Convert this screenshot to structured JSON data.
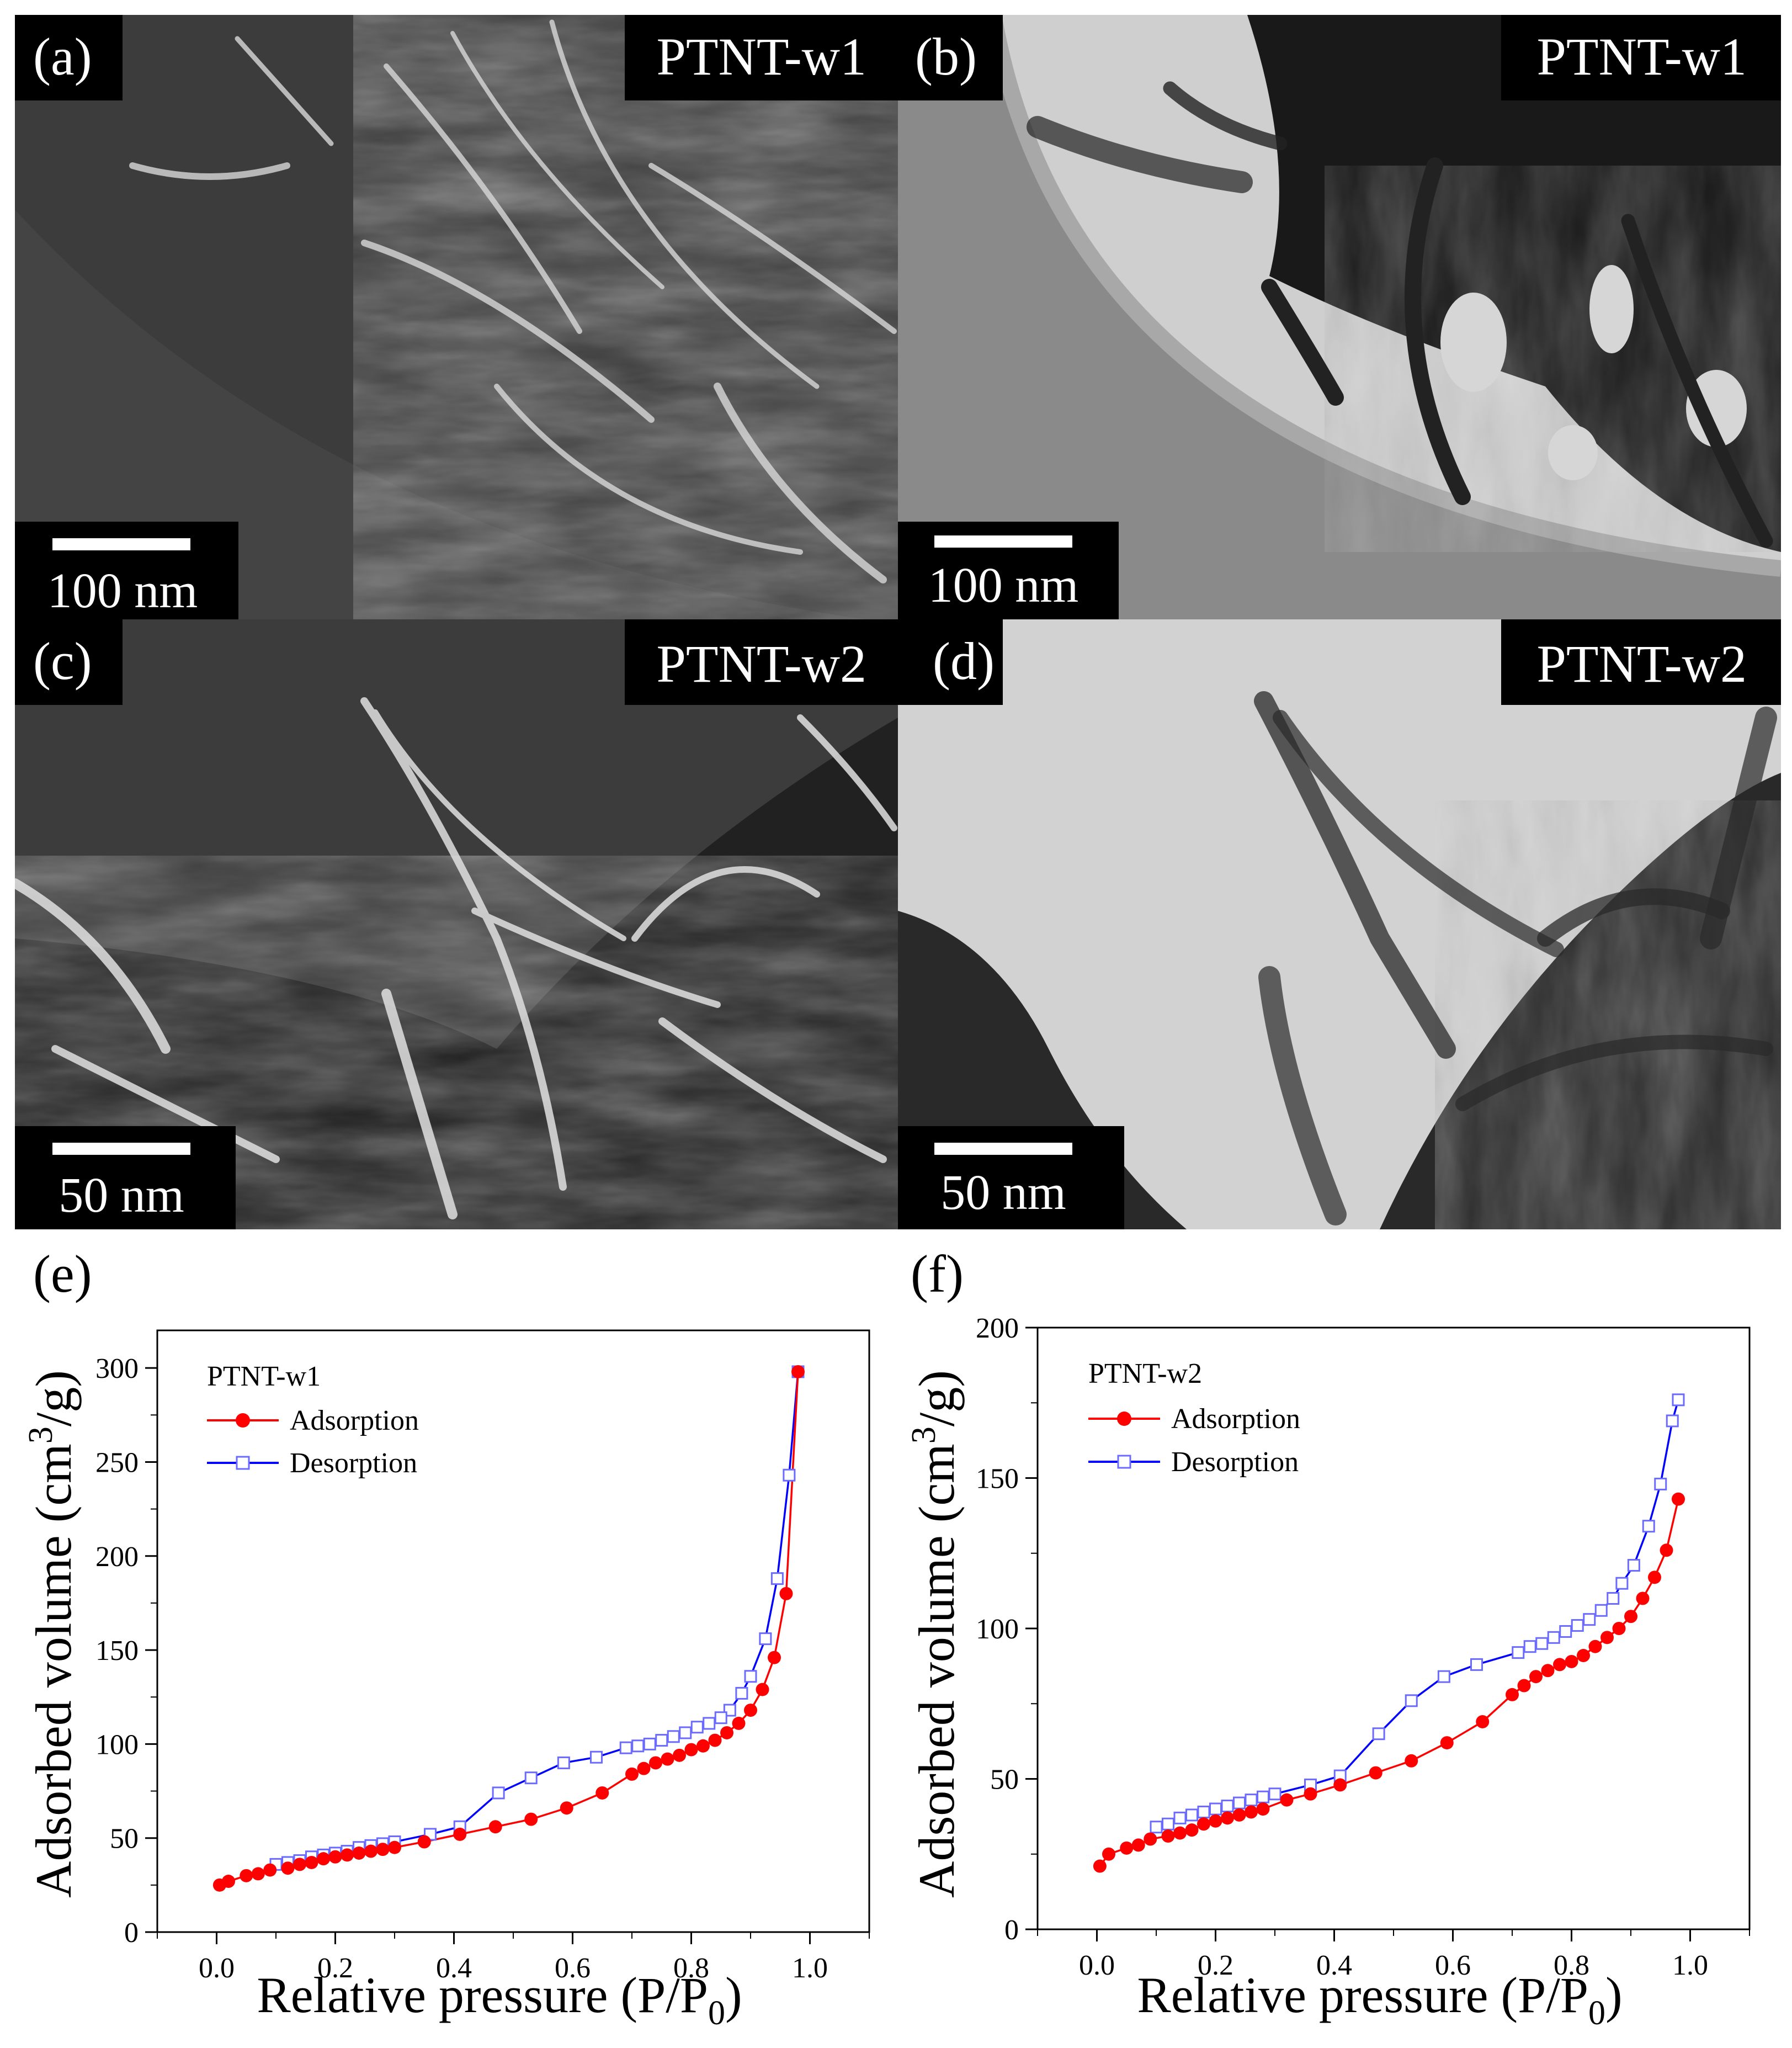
{
  "panels": [
    {
      "id": "a",
      "tag": "(a)",
      "sample": "PTNT-w1",
      "scale_label": "100 nm",
      "imaging": "dark-field"
    },
    {
      "id": "b",
      "tag": "(b)",
      "sample": "PTNT-w1",
      "scale_label": "100 nm",
      "imaging": "bright-field"
    },
    {
      "id": "c",
      "tag": "(c)",
      "sample": "PTNT-w2",
      "scale_label": "50 nm",
      "imaging": "dark-field"
    },
    {
      "id": "d",
      "tag": "(d)",
      "sample": "PTNT-w2",
      "scale_label": "50 nm",
      "imaging": "bright-field"
    }
  ],
  "chart_data": [
    {
      "panel_tag": "(e)",
      "type": "line",
      "legend_title": "PTNT-w1",
      "xlabel": "Relative pressure (P/P0)",
      "ylabel": "Adsorbed volume (cm3/g)",
      "xlim": [
        -0.1,
        1.1
      ],
      "ylim": [
        0,
        320
      ],
      "xticks": [
        "0.0",
        "0.2",
        "0.4",
        "0.6",
        "0.8",
        "1.0"
      ],
      "yticks": [
        "0",
        "50",
        "100",
        "150",
        "200",
        "250",
        "300"
      ],
      "legend_position": "top-left",
      "series": [
        {
          "name": "Adsorption",
          "color": "#ff0000",
          "marker": "filled-circle",
          "x": [
            0.005,
            0.02,
            0.05,
            0.07,
            0.09,
            0.12,
            0.14,
            0.16,
            0.18,
            0.2,
            0.22,
            0.24,
            0.26,
            0.28,
            0.3,
            0.35,
            0.41,
            0.47,
            0.53,
            0.59,
            0.65,
            0.7,
            0.72,
            0.74,
            0.76,
            0.78,
            0.8,
            0.82,
            0.84,
            0.86,
            0.88,
            0.9,
            0.92,
            0.94,
            0.96,
            0.98
          ],
          "y": [
            25,
            27,
            30,
            31,
            33,
            34,
            36,
            37,
            39,
            40,
            41,
            42,
            43,
            44,
            45,
            48,
            52,
            56,
            60,
            66,
            74,
            84,
            87,
            90,
            92,
            94,
            97,
            99,
            102,
            106,
            111,
            118,
            129,
            146,
            180,
            298
          ]
        },
        {
          "name": "Desorption",
          "color": "#0000ff",
          "marker": "open-square",
          "x": [
            0.98,
            0.965,
            0.945,
            0.925,
            0.9,
            0.885,
            0.865,
            0.85,
            0.83,
            0.81,
            0.79,
            0.77,
            0.75,
            0.73,
            0.71,
            0.69,
            0.64,
            0.585,
            0.53,
            0.475,
            0.41,
            0.36,
            0.3,
            0.28,
            0.26,
            0.24,
            0.22,
            0.2,
            0.18,
            0.16,
            0.14,
            0.12,
            0.1
          ],
          "y": [
            298,
            243,
            188,
            156,
            136,
            127,
            118,
            114,
            111,
            109,
            106,
            104,
            102,
            100,
            99,
            98,
            93,
            90,
            82,
            74,
            56,
            52,
            48,
            47,
            46,
            45,
            43,
            42,
            41,
            40,
            38,
            37,
            36
          ]
        }
      ]
    },
    {
      "panel_tag": "(f)",
      "type": "line",
      "legend_title": "PTNT-w2",
      "xlabel": "Relative pressure (P/P0)",
      "ylabel": "Adsorbed volume (cm3/g)",
      "xlim": [
        -0.1,
        1.1
      ],
      "ylim": [
        0,
        200
      ],
      "xticks": [
        "0.0",
        "0.2",
        "0.4",
        "0.6",
        "0.8",
        "1.0"
      ],
      "yticks": [
        "0",
        "50",
        "100",
        "150",
        "200"
      ],
      "legend_position": "top-left",
      "series": [
        {
          "name": "Adsorption",
          "color": "#ff0000",
          "marker": "filled-circle",
          "x": [
            0.005,
            0.02,
            0.05,
            0.07,
            0.09,
            0.12,
            0.14,
            0.16,
            0.18,
            0.2,
            0.22,
            0.24,
            0.26,
            0.28,
            0.32,
            0.36,
            0.41,
            0.47,
            0.53,
            0.59,
            0.65,
            0.7,
            0.72,
            0.74,
            0.76,
            0.78,
            0.8,
            0.82,
            0.84,
            0.86,
            0.88,
            0.9,
            0.92,
            0.94,
            0.96,
            0.98
          ],
          "y": [
            21,
            25,
            27,
            28,
            30,
            31,
            32,
            33,
            35,
            36,
            37,
            38,
            39,
            40,
            43,
            45,
            48,
            52,
            56,
            62,
            69,
            78,
            81,
            84,
            86,
            88,
            89,
            91,
            94,
            97,
            100,
            104,
            110,
            117,
            126,
            143
          ]
        },
        {
          "name": "Desorption",
          "color": "#0000ff",
          "marker": "open-square",
          "x": [
            0.98,
            0.97,
            0.95,
            0.93,
            0.905,
            0.885,
            0.87,
            0.85,
            0.83,
            0.81,
            0.79,
            0.77,
            0.75,
            0.73,
            0.71,
            0.64,
            0.585,
            0.53,
            0.475,
            0.41,
            0.36,
            0.3,
            0.28,
            0.26,
            0.24,
            0.22,
            0.2,
            0.18,
            0.16,
            0.14,
            0.12,
            0.1
          ],
          "y": [
            176,
            169,
            148,
            134,
            121,
            115,
            110,
            106,
            103,
            101,
            99,
            97,
            95,
            94,
            92,
            88,
            84,
            76,
            65,
            51,
            48,
            45,
            44,
            43,
            42,
            41,
            40,
            39,
            38,
            37,
            35,
            34
          ]
        }
      ]
    }
  ]
}
